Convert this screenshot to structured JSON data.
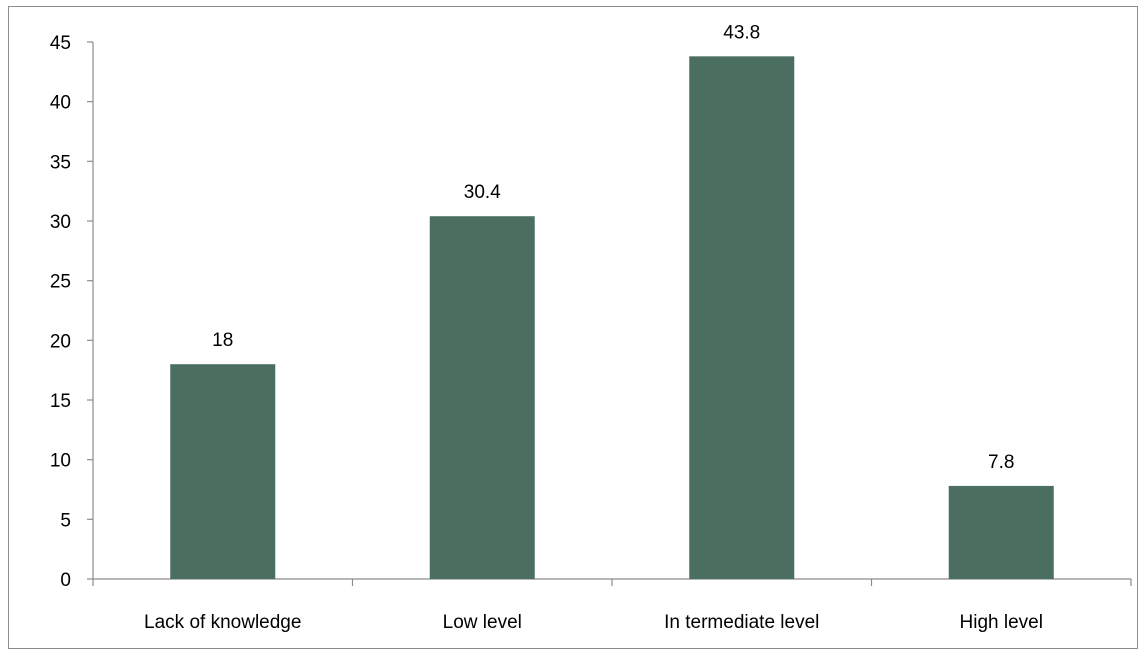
{
  "chart_data": {
    "type": "bar",
    "title": "",
    "xlabel": "",
    "ylabel": "",
    "categories": [
      "Lack of knowledge",
      "Low level",
      "In termediate level",
      "High level"
    ],
    "values": [
      18,
      30.4,
      43.8,
      7.8
    ],
    "data_labels": [
      "18",
      "30.4",
      "43.8",
      "7.8"
    ],
    "ylim": [
      0,
      45
    ],
    "yticks": [
      0,
      5,
      10,
      15,
      20,
      25,
      30,
      35,
      40,
      45
    ],
    "bar_color": "#4a6e60",
    "grid": false,
    "legend": "none"
  }
}
